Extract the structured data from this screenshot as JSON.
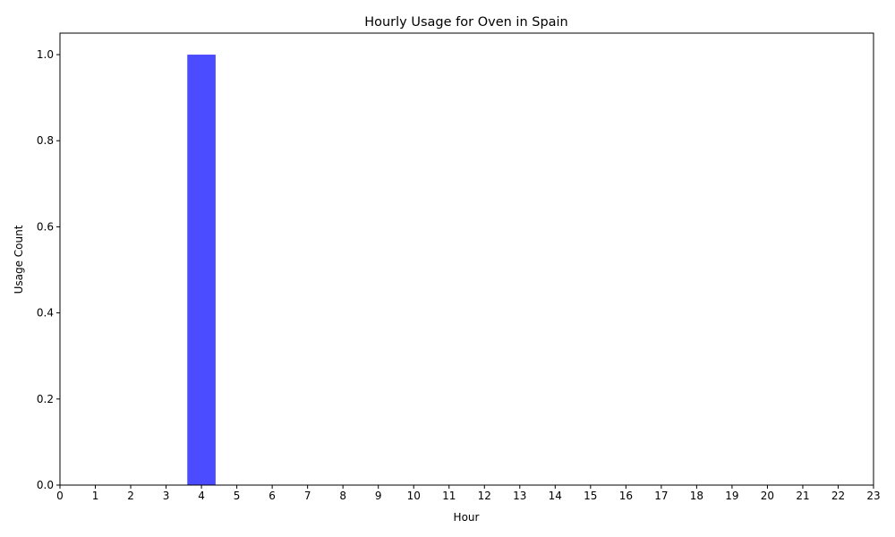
{
  "chart_data": {
    "type": "bar",
    "title": "Hourly Usage for Oven in Spain",
    "xlabel": "Hour",
    "ylabel": "Usage Count",
    "x": [
      4
    ],
    "values": [
      1
    ],
    "xlim": [
      0,
      23
    ],
    "ylim": [
      0,
      1.05
    ],
    "xticks": [
      "0",
      "1",
      "2",
      "3",
      "4",
      "5",
      "6",
      "7",
      "8",
      "9",
      "10",
      "11",
      "12",
      "13",
      "14",
      "15",
      "16",
      "17",
      "18",
      "19",
      "20",
      "21",
      "22",
      "23"
    ],
    "yticks": [
      "0.0",
      "0.2",
      "0.4",
      "0.6",
      "0.8",
      "1.0"
    ],
    "bar_color": "#4b4bff",
    "grid": false,
    "legend": "none"
  }
}
